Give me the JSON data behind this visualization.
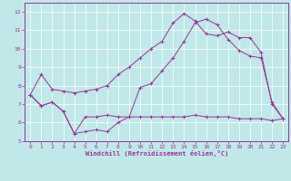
{
  "title": "",
  "xlabel": "Windchill (Refroidissement éolien,°C)",
  "ylabel": "",
  "xlim": [
    -0.5,
    23.5
  ],
  "ylim": [
    5,
    12.5
  ],
  "yticks": [
    5,
    6,
    7,
    8,
    9,
    10,
    11,
    12
  ],
  "xticks": [
    0,
    1,
    2,
    3,
    4,
    5,
    6,
    7,
    8,
    9,
    10,
    11,
    12,
    13,
    14,
    15,
    16,
    17,
    18,
    19,
    20,
    21,
    22,
    23
  ],
  "bg_color": "#c0e8e8",
  "line_color": "#993399",
  "grid_color": "#ffffff",
  "series": [
    {
      "x": [
        0,
        1,
        2,
        3,
        4,
        5,
        6,
        7,
        8,
        9,
        10,
        11,
        12,
        13,
        14,
        15,
        16,
        17,
        18,
        19,
        20,
        21,
        22,
        23
      ],
      "y": [
        7.5,
        8.6,
        7.8,
        7.7,
        7.6,
        7.7,
        7.8,
        8.0,
        8.6,
        9.0,
        9.5,
        10.0,
        10.4,
        11.4,
        11.9,
        11.5,
        10.8,
        10.7,
        10.9,
        10.6,
        10.6,
        9.8,
        7.0,
        6.2
      ]
    },
    {
      "x": [
        0,
        1,
        2,
        3,
        4,
        5,
        6,
        7,
        8,
        9,
        10,
        11,
        12,
        13,
        14,
        15,
        16,
        17,
        18,
        19,
        20,
        21,
        22,
        23
      ],
      "y": [
        7.5,
        6.9,
        7.1,
        6.6,
        5.4,
        5.5,
        5.6,
        5.5,
        6.0,
        6.3,
        7.9,
        8.1,
        8.8,
        9.5,
        10.4,
        11.4,
        11.6,
        11.3,
        10.5,
        9.9,
        9.6,
        9.5,
        7.1,
        6.2
      ]
    },
    {
      "x": [
        0,
        1,
        2,
        3,
        4,
        5,
        6,
        7,
        8,
        9,
        10,
        11,
        12,
        13,
        14,
        15,
        16,
        17,
        18,
        19,
        20,
        21,
        22,
        23
      ],
      "y": [
        7.5,
        6.9,
        7.1,
        6.6,
        5.4,
        6.3,
        6.3,
        6.4,
        6.3,
        6.3,
        6.3,
        6.3,
        6.3,
        6.3,
        6.3,
        6.4,
        6.3,
        6.3,
        6.3,
        6.2,
        6.2,
        6.2,
        6.1,
        6.2
      ]
    }
  ]
}
